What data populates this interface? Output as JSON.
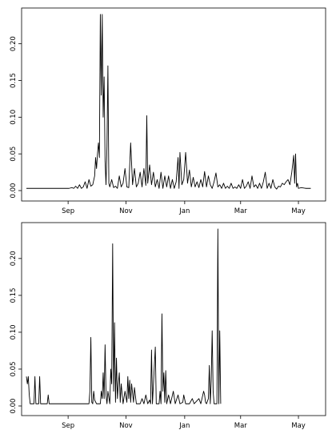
{
  "chart_data": [
    {
      "type": "line",
      "title": "",
      "xlabel": "",
      "ylabel": "",
      "x_unit": "days since start of series (approx., from axis tick positions)",
      "xlim": [
        0,
        303
      ],
      "ylim": [
        0,
        0.24
      ],
      "x_ticks": [
        {
          "label": "Sep",
          "x": 44
        },
        {
          "label": "Nov",
          "x": 105
        },
        {
          "label": "Jan",
          "x": 167
        },
        {
          "label": "Mar",
          "x": 226
        },
        {
          "label": "May",
          "x": 287
        }
      ],
      "y_ticks": [
        0.0,
        0.05,
        0.1,
        0.15,
        0.2
      ],
      "y_tick_labels": [
        "0.00",
        "0.05",
        "0.10",
        "0.15",
        "0.20"
      ],
      "grid": false,
      "series": [
        {
          "name": "",
          "color": "#000000",
          "points": [
            [
              0,
              0.003
            ],
            [
              5,
              0.003
            ],
            [
              10,
              0.003
            ],
            [
              15,
              0.003
            ],
            [
              20,
              0.003
            ],
            [
              25,
              0.003
            ],
            [
              30,
              0.003
            ],
            [
              35,
              0.003
            ],
            [
              40,
              0.003
            ],
            [
              45,
              0.003
            ],
            [
              48,
              0.004
            ],
            [
              50,
              0.003
            ],
            [
              52,
              0.006
            ],
            [
              54,
              0.003
            ],
            [
              56,
              0.008
            ],
            [
              58,
              0.003
            ],
            [
              60,
              0.005
            ],
            [
              62,
              0.012
            ],
            [
              64,
              0.003
            ],
            [
              66,
              0.015
            ],
            [
              68,
              0.006
            ],
            [
              70,
              0.008
            ],
            [
              72,
              0.02
            ],
            [
              73,
              0.045
            ],
            [
              74,
              0.03
            ],
            [
              75,
              0.05
            ],
            [
              76,
              0.065
            ],
            [
              77,
              0.045
            ],
            [
              78,
              0.24
            ],
            [
              79,
              0.13
            ],
            [
              80,
              0.24
            ],
            [
              81,
              0.1
            ],
            [
              82,
              0.155
            ],
            [
              83,
              0.04
            ],
            [
              84,
              0.008
            ],
            [
              85,
              0.06
            ],
            [
              86,
              0.17
            ],
            [
              87,
              0.01
            ],
            [
              88,
              0.005
            ],
            [
              90,
              0.015
            ],
            [
              92,
              0.004
            ],
            [
              94,
              0.006
            ],
            [
              96,
              0.003
            ],
            [
              98,
              0.02
            ],
            [
              100,
              0.005
            ],
            [
              102,
              0.01
            ],
            [
              104,
              0.03
            ],
            [
              106,
              0.005
            ],
            [
              108,
              0.004
            ],
            [
              110,
              0.065
            ],
            [
              112,
              0.008
            ],
            [
              114,
              0.03
            ],
            [
              116,
              0.005
            ],
            [
              118,
              0.01
            ],
            [
              120,
              0.025
            ],
            [
              122,
              0.005
            ],
            [
              124,
              0.03
            ],
            [
              126,
              0.007
            ],
            [
              127,
              0.102
            ],
            [
              128,
              0.01
            ],
            [
              130,
              0.035
            ],
            [
              132,
              0.008
            ],
            [
              134,
              0.025
            ],
            [
              136,
              0.005
            ],
            [
              138,
              0.015
            ],
            [
              140,
              0.003
            ],
            [
              142,
              0.025
            ],
            [
              144,
              0.003
            ],
            [
              146,
              0.02
            ],
            [
              148,
              0.005
            ],
            [
              150,
              0.02
            ],
            [
              152,
              0.003
            ],
            [
              154,
              0.015
            ],
            [
              156,
              0.003
            ],
            [
              158,
              0.012
            ],
            [
              160,
              0.045
            ],
            [
              161,
              0.003
            ],
            [
              162,
              0.052
            ],
            [
              164,
              0.008
            ],
            [
              166,
              0.015
            ],
            [
              168,
              0.052
            ],
            [
              170,
              0.01
            ],
            [
              172,
              0.028
            ],
            [
              174,
              0.005
            ],
            [
              176,
              0.018
            ],
            [
              178,
              0.005
            ],
            [
              180,
              0.012
            ],
            [
              182,
              0.004
            ],
            [
              184,
              0.015
            ],
            [
              186,
              0.005
            ],
            [
              188,
              0.026
            ],
            [
              190,
              0.005
            ],
            [
              192,
              0.02
            ],
            [
              194,
              0.008
            ],
            [
              196,
              0.003
            ],
            [
              198,
              0.012
            ],
            [
              200,
              0.024
            ],
            [
              202,
              0.005
            ],
            [
              204,
              0.008
            ],
            [
              206,
              0.003
            ],
            [
              208,
              0.01
            ],
            [
              210,
              0.003
            ],
            [
              212,
              0.006
            ],
            [
              214,
              0.003
            ],
            [
              216,
              0.01
            ],
            [
              218,
              0.003
            ],
            [
              220,
              0.005
            ],
            [
              222,
              0.003
            ],
            [
              224,
              0.008
            ],
            [
              226,
              0.003
            ],
            [
              228,
              0.015
            ],
            [
              230,
              0.003
            ],
            [
              232,
              0.006
            ],
            [
              234,
              0.012
            ],
            [
              236,
              0.003
            ],
            [
              238,
              0.02
            ],
            [
              240,
              0.005
            ],
            [
              242,
              0.008
            ],
            [
              244,
              0.003
            ],
            [
              246,
              0.01
            ],
            [
              248,
              0.003
            ],
            [
              250,
              0.012
            ],
            [
              252,
              0.025
            ],
            [
              254,
              0.003
            ],
            [
              256,
              0.01
            ],
            [
              258,
              0.003
            ],
            [
              260,
              0.015
            ],
            [
              262,
              0.005
            ],
            [
              264,
              0.002
            ],
            [
              266,
              0.006
            ],
            [
              268,
              0.005
            ],
            [
              270,
              0.01
            ],
            [
              272,
              0.008
            ],
            [
              274,
              0.012
            ],
            [
              276,
              0.015
            ],
            [
              278,
              0.008
            ],
            [
              280,
              0.025
            ],
            [
              282,
              0.048
            ],
            [
              283,
              0.01
            ],
            [
              284,
              0.05
            ],
            [
              285,
              0.005
            ],
            [
              286,
              0.01
            ],
            [
              287,
              0.003
            ],
            [
              290,
              0.004
            ],
            [
              295,
              0.003
            ],
            [
              300,
              0.003
            ]
          ]
        }
      ]
    },
    {
      "type": "line",
      "title": "",
      "xlabel": "",
      "ylabel": "",
      "x_unit": "days since start of series (approx., from axis tick positions)",
      "xlim": [
        0,
        303
      ],
      "ylim": [
        0,
        0.24
      ],
      "x_ticks": [
        {
          "label": "Sep",
          "x": 44
        },
        {
          "label": "Nov",
          "x": 105
        },
        {
          "label": "Jan",
          "x": 167
        },
        {
          "label": "Mar",
          "x": 226
        },
        {
          "label": "May",
          "x": 287
        }
      ],
      "y_ticks": [
        0.0,
        0.05,
        0.1,
        0.15,
        0.2
      ],
      "y_tick_labels": [
        "0.00",
        "0.05",
        "0.10",
        "0.15",
        "0.20"
      ],
      "grid": false,
      "series": [
        {
          "name": "",
          "color": "#000000",
          "points": [
            [
              0,
              0.04
            ],
            [
              1,
              0.03
            ],
            [
              2,
              0.04
            ],
            [
              3,
              0.015
            ],
            [
              4,
              0.003
            ],
            [
              8,
              0.003
            ],
            [
              9,
              0.04
            ],
            [
              10,
              0.003
            ],
            [
              13,
              0.003
            ],
            [
              14,
              0.04
            ],
            [
              15,
              0.003
            ],
            [
              22,
              0.003
            ],
            [
              23,
              0.015
            ],
            [
              24,
              0.003
            ],
            [
              35,
              0.003
            ],
            [
              50,
              0.003
            ],
            [
              66,
              0.003
            ],
            [
              67,
              0.02
            ],
            [
              68,
              0.093
            ],
            [
              69,
              0.005
            ],
            [
              70,
              0.003
            ],
            [
              71,
              0.02
            ],
            [
              72,
              0.008
            ],
            [
              74,
              0.003
            ],
            [
              78,
              0.003
            ],
            [
              79,
              0.02
            ],
            [
              80,
              0.01
            ],
            [
              81,
              0.045
            ],
            [
              82,
              0.01
            ],
            [
              83,
              0.083
            ],
            [
              84,
              0.015
            ],
            [
              85,
              0.003
            ],
            [
              86,
              0.02
            ],
            [
              88,
              0.003
            ],
            [
              89,
              0.05
            ],
            [
              90,
              0.03
            ],
            [
              91,
              0.22
            ],
            [
              92,
              0.02
            ],
            [
              93,
              0.113
            ],
            [
              94,
              0.005
            ],
            [
              95,
              0.065
            ],
            [
              96,
              0.01
            ],
            [
              97,
              0.03
            ],
            [
              98,
              0.045
            ],
            [
              99,
              0.005
            ],
            [
              100,
              0.03
            ],
            [
              102,
              0.003
            ],
            [
              104,
              0.02
            ],
            [
              106,
              0.005
            ],
            [
              107,
              0.04
            ],
            [
              108,
              0.01
            ],
            [
              109,
              0.035
            ],
            [
              110,
              0.005
            ],
            [
              111,
              0.03
            ],
            [
              113,
              0.005
            ],
            [
              114,
              0.025
            ],
            [
              116,
              0.003
            ],
            [
              120,
              0.003
            ],
            [
              122,
              0.01
            ],
            [
              124,
              0.003
            ],
            [
              126,
              0.015
            ],
            [
              128,
              0.003
            ],
            [
              130,
              0.008
            ],
            [
              131,
              0.003
            ],
            [
              132,
              0.076
            ],
            [
              133,
              0.003
            ],
            [
              136,
              0.08
            ],
            [
              137,
              0.003
            ],
            [
              140,
              0.003
            ],
            [
              141,
              0.02
            ],
            [
              142,
              0.003
            ],
            [
              143,
              0.125
            ],
            [
              144,
              0.02
            ],
            [
              145,
              0.045
            ],
            [
              146,
              0.005
            ],
            [
              147,
              0.048
            ],
            [
              148,
              0.003
            ],
            [
              150,
              0.015
            ],
            [
              152,
              0.003
            ],
            [
              155,
              0.02
            ],
            [
              157,
              0.003
            ],
            [
              160,
              0.015
            ],
            [
              162,
              0.003
            ],
            [
              165,
              0.005
            ],
            [
              166,
              0.015
            ],
            [
              168,
              0.003
            ],
            [
              172,
              0.003
            ],
            [
              175,
              0.01
            ],
            [
              177,
              0.003
            ],
            [
              182,
              0.01
            ],
            [
              184,
              0.003
            ],
            [
              187,
              0.02
            ],
            [
              188,
              0.015
            ],
            [
              189,
              0.005
            ],
            [
              190,
              0.003
            ],
            [
              192,
              0.01
            ],
            [
              193,
              0.055
            ],
            [
              194,
              0.003
            ],
            [
              195,
              0.035
            ],
            [
              196,
              0.102
            ],
            [
              197,
              0.02
            ],
            [
              198,
              0.003
            ],
            [
              201,
              0.003
            ],
            [
              202,
              0.24
            ],
            [
              203,
              0.003
            ],
            [
              204,
              0.102
            ],
            [
              205,
              0.003
            ]
          ]
        }
      ]
    }
  ]
}
